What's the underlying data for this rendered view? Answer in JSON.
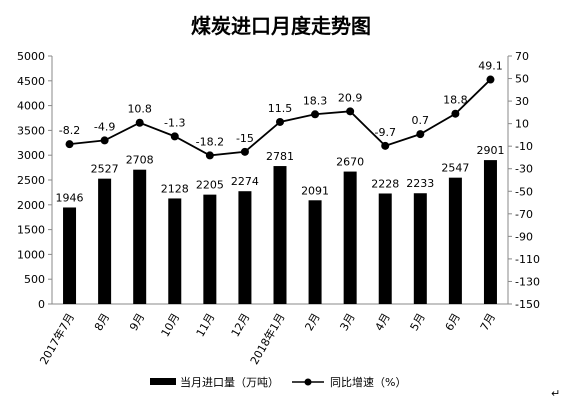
{
  "chart_data": {
    "type": "bar",
    "title": "煤炭进口月度走势图",
    "categories": [
      "2017年7月",
      "8月",
      "9月",
      "10月",
      "11月",
      "12月",
      "2018年1月",
      "2月",
      "3月",
      "4月",
      "5月",
      "6月",
      "7月"
    ],
    "series": [
      {
        "name": "当月进口量（万吨）",
        "type": "bar",
        "axis": "left",
        "color": "#000000",
        "values": [
          1946,
          2527,
          2708,
          2128,
          2205,
          2274,
          2781,
          2091,
          2670,
          2228,
          2233,
          2547,
          2901
        ]
      },
      {
        "name": "同比增速（%）",
        "type": "line",
        "axis": "right",
        "color": "#000000",
        "values": [
          -8.2,
          -4.9,
          10.8,
          -1.3,
          -18.2,
          -15,
          11.5,
          18.3,
          20.9,
          -9.7,
          0.7,
          18.8,
          49.1
        ]
      }
    ],
    "bar_labels": [
      "1946",
      "2527",
      "2708",
      "2128",
      "2205",
      "2274",
      "2781",
      "2091",
      "2670",
      "2228",
      "2233",
      "2547",
      "2901"
    ],
    "line_labels": [
      "-8.2",
      "-4.9",
      "10.8",
      "-1.3",
      "-18.2",
      "-15",
      "11.5",
      "18.3",
      "20.9",
      "-9.7",
      "0.7",
      "18.8",
      "49.1"
    ],
    "y_left": {
      "min": 0,
      "max": 5000,
      "ticks": [
        "0",
        "500",
        "1000",
        "1500",
        "2000",
        "2500",
        "3000",
        "3500",
        "4000",
        "4500",
        "5000"
      ]
    },
    "y_right": {
      "min": -150,
      "max": 70,
      "ticks": [
        "-150",
        "-130",
        "-110",
        "-90",
        "-70",
        "-50",
        "-30",
        "-10",
        "10",
        "30",
        "50",
        "70"
      ]
    },
    "grid": false,
    "legend_position": "bottom"
  }
}
